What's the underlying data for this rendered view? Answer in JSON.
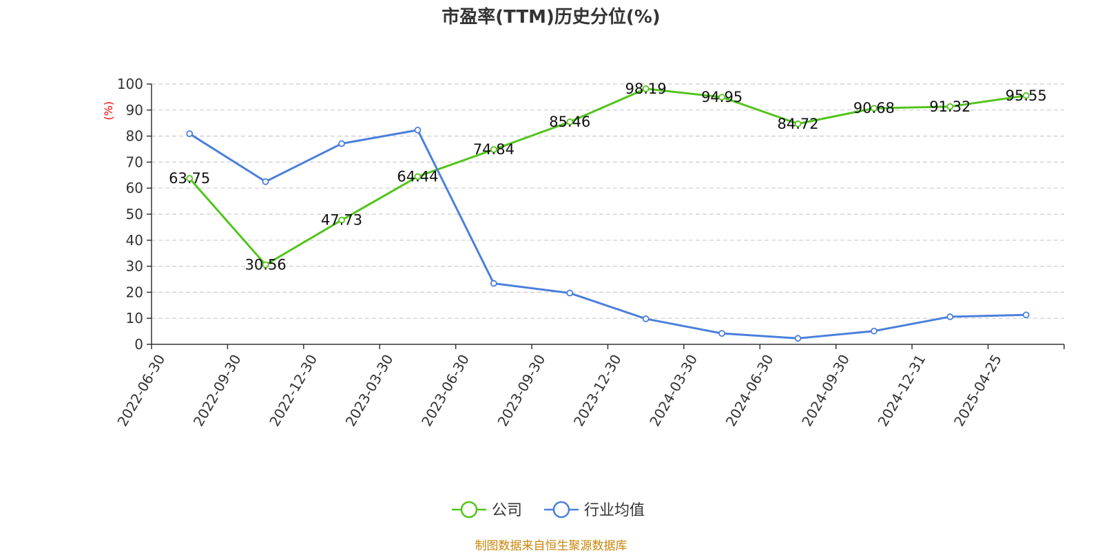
{
  "chart_data": {
    "type": "line",
    "title": "市盈率(TTM)历史分位(%)",
    "ylabel": "(%)",
    "xlabel": "",
    "ylim": [
      0,
      100
    ],
    "yticks": [
      0,
      10,
      20,
      30,
      40,
      50,
      60,
      70,
      80,
      90,
      100
    ],
    "grid": true,
    "legend_position": "bottom-center",
    "categories": [
      "2022-06-30",
      "2022-09-30",
      "2022-12-30",
      "2023-03-30",
      "2023-06-30",
      "2023-09-30",
      "2023-12-30",
      "2024-03-30",
      "2024-06-30",
      "2024-09-30",
      "2024-12-31",
      "2025-04-25"
    ],
    "series": [
      {
        "name": "公司",
        "color": "#52c41a",
        "show_labels": true,
        "values": [
          63.75,
          30.56,
          47.73,
          64.44,
          74.84,
          85.46,
          98.19,
          94.95,
          84.72,
          90.68,
          91.32,
          95.55
        ]
      },
      {
        "name": "行业均值",
        "color": "#4a7fdc",
        "show_labels": false,
        "values": [
          80.9,
          62.5,
          77.1,
          82.3,
          23.4,
          19.7,
          9.8,
          4.2,
          2.3,
          5.1,
          10.6,
          11.3
        ]
      }
    ]
  },
  "footer": {
    "source": "制图数据来自恒生聚源数据库"
  }
}
